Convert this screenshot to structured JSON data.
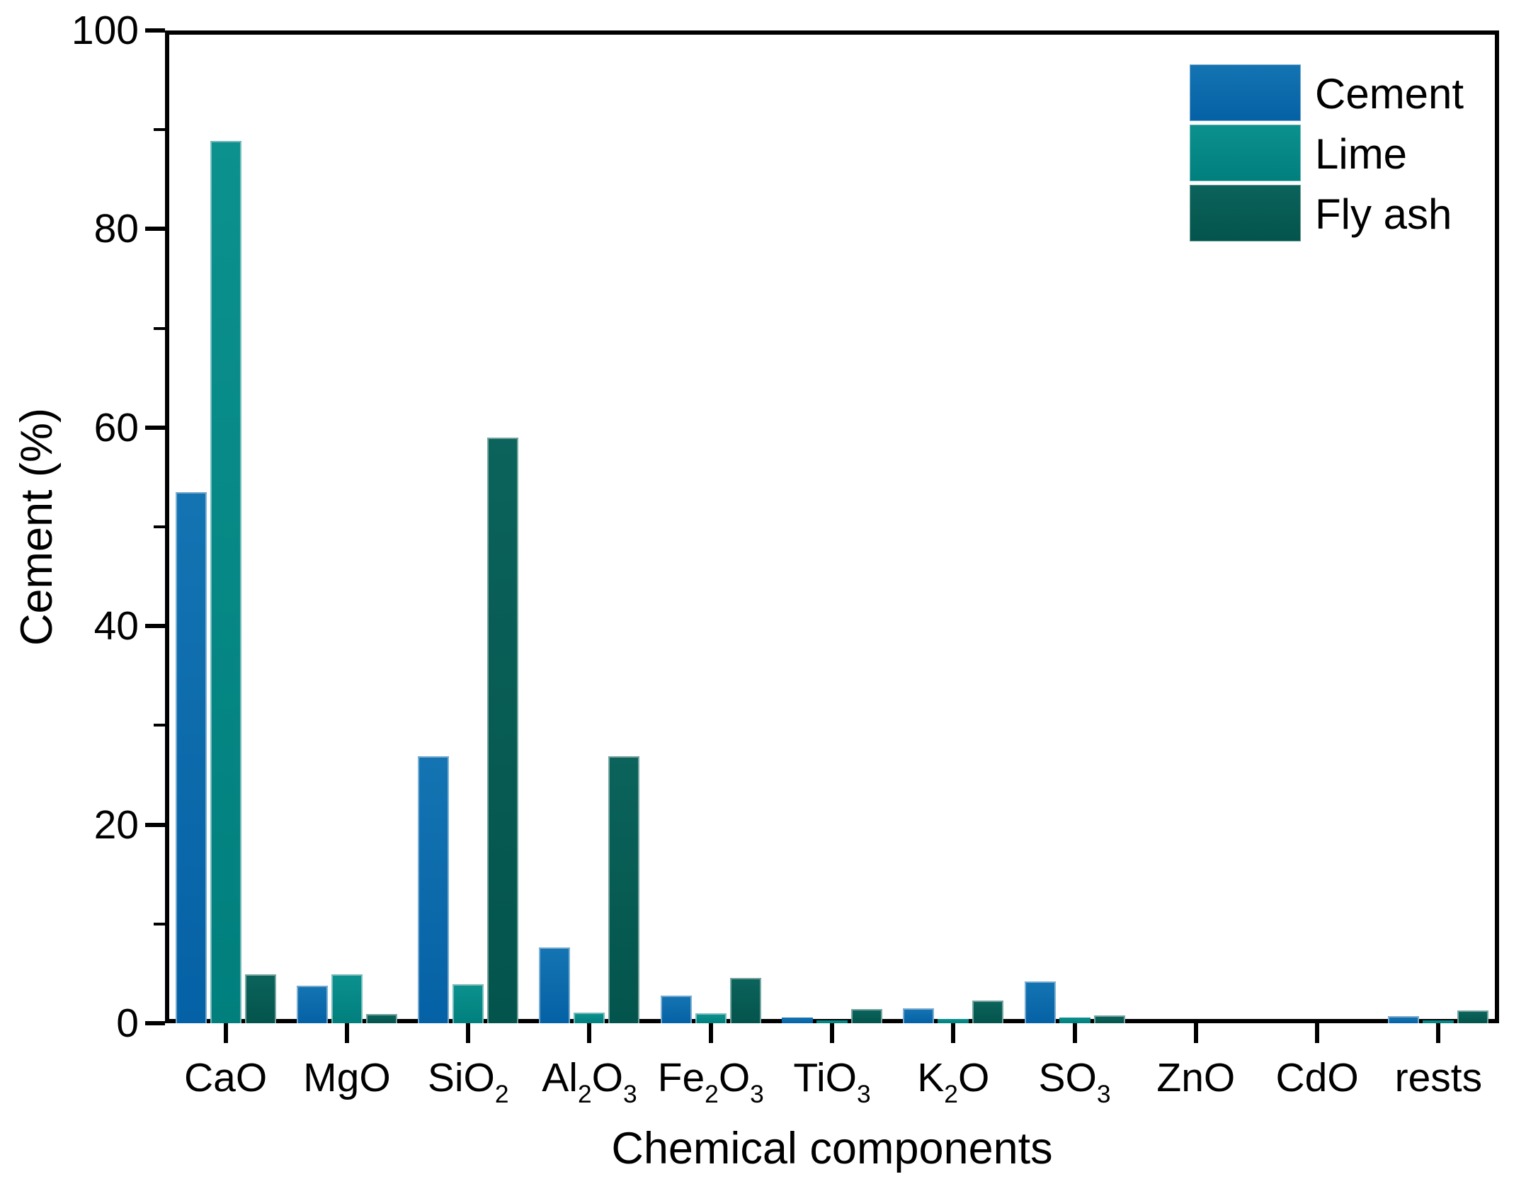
{
  "figure": {
    "background": "#ffffff",
    "frame_color": "#000000"
  },
  "chart_data": {
    "type": "bar",
    "title": "",
    "xlabel": "Chemical components",
    "ylabel": "Cement (%)",
    "ylim": [
      0,
      100
    ],
    "ytick_step": 20,
    "ytick_minor_step": 10,
    "ytick_labels": [
      "0",
      "20",
      "40",
      "60",
      "80",
      "100"
    ],
    "grid": false,
    "legend_position": "top-right-inside",
    "categories": [
      "CaO",
      "MgO",
      "SiO2",
      "Al2O3",
      "Fe2O3",
      "TiO3",
      "K2O",
      "SO3",
      "ZnO",
      "CdO",
      "rests"
    ],
    "categories_rich": [
      [
        {
          "t": "CaO"
        }
      ],
      [
        {
          "t": "MgO"
        }
      ],
      [
        {
          "t": "SiO"
        },
        {
          "t": "2",
          "sub": true
        }
      ],
      [
        {
          "t": "Al"
        },
        {
          "t": "2",
          "sub": true
        },
        {
          "t": "O"
        },
        {
          "t": "3",
          "sub": true
        }
      ],
      [
        {
          "t": "Fe"
        },
        {
          "t": "2",
          "sub": true
        },
        {
          "t": "O"
        },
        {
          "t": "3",
          "sub": true
        }
      ],
      [
        {
          "t": "TiO"
        },
        {
          "t": "3",
          "sub": true
        }
      ],
      [
        {
          "t": "K"
        },
        {
          "t": "2",
          "sub": true
        },
        {
          "t": "O"
        }
      ],
      [
        {
          "t": "SO"
        },
        {
          "t": "3",
          "sub": true
        }
      ],
      [
        {
          "t": "ZnO"
        }
      ],
      [
        {
          "t": "CdO"
        }
      ],
      [
        {
          "t": "rests"
        }
      ]
    ],
    "series": [
      {
        "name": "Cement",
        "color": "#0561a5",
        "color_top": "#1474b2",
        "values": [
          53.5,
          3.8,
          26.9,
          7.6,
          2.8,
          0.6,
          1.5,
          4.2,
          0,
          0,
          0.7
        ]
      },
      {
        "name": "Lime",
        "color": "#007f7d",
        "color_top": "#0c918e",
        "values": [
          88.9,
          4.9,
          3.9,
          1.1,
          1.0,
          0.3,
          0.45,
          0.6,
          0,
          0,
          0.25
        ]
      },
      {
        "name": "Fly ash",
        "color": "#03544c",
        "color_top": "#0b635b",
        "values": [
          4.9,
          0.9,
          59.0,
          26.9,
          4.6,
          1.4,
          2.3,
          0.8,
          0,
          0,
          1.3
        ]
      }
    ]
  }
}
